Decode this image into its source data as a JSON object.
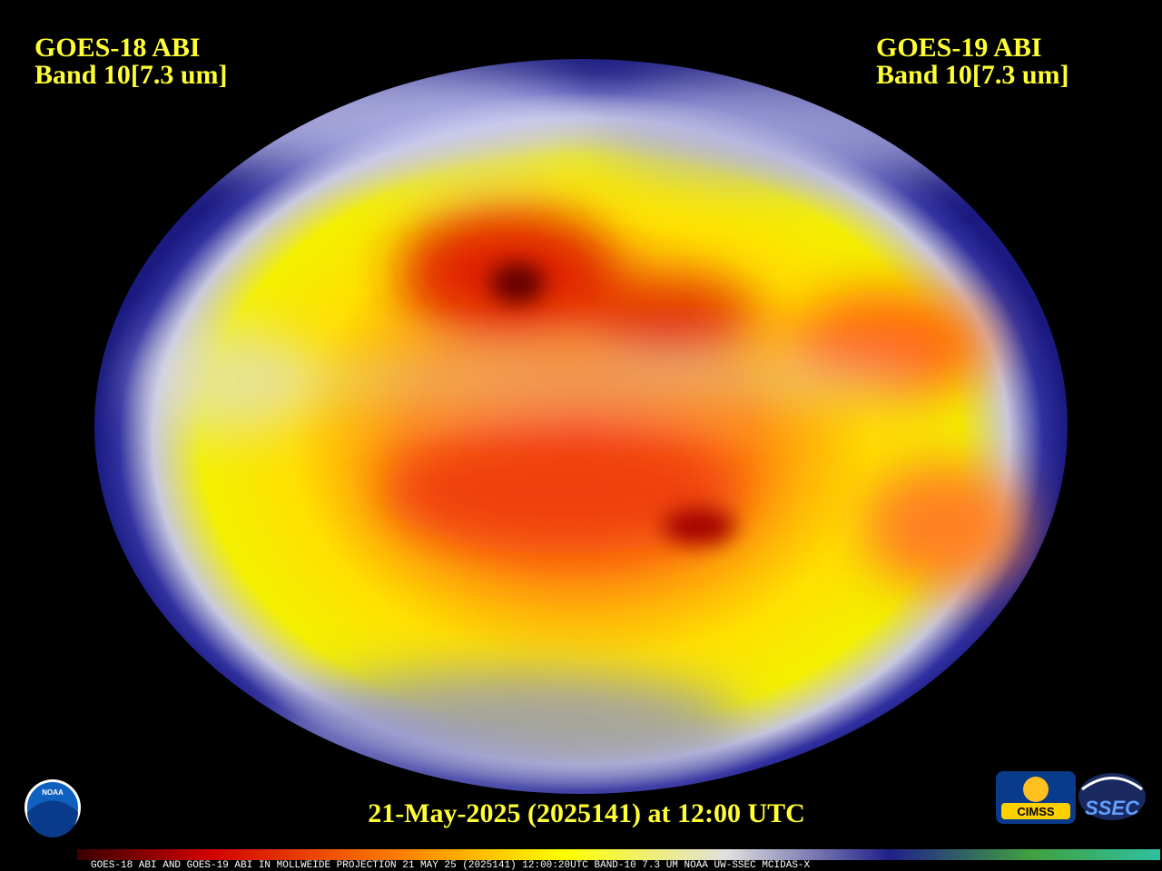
{
  "header": {
    "left": {
      "title": "GOES-18 ABI",
      "band": "Band 10[7.3 um]"
    },
    "right": {
      "title": "GOES-19 ABI",
      "band": "Band 10[7.3 um]"
    }
  },
  "timestamp": "21-May-2025 (2025141) at 12:00 UTC",
  "footer": "GOES-18 ABI AND GOES-19 ABI IN MOLLWEIDE PROJECTION 21 MAY 25 (2025141) 12:00:20UTC BAND-10 7.3 UM NOAA UW-SSEC MCIDAS-X",
  "logos": {
    "noaa": "NOAA",
    "cimss": "CIMSS",
    "ssec": "SSEC"
  }
}
